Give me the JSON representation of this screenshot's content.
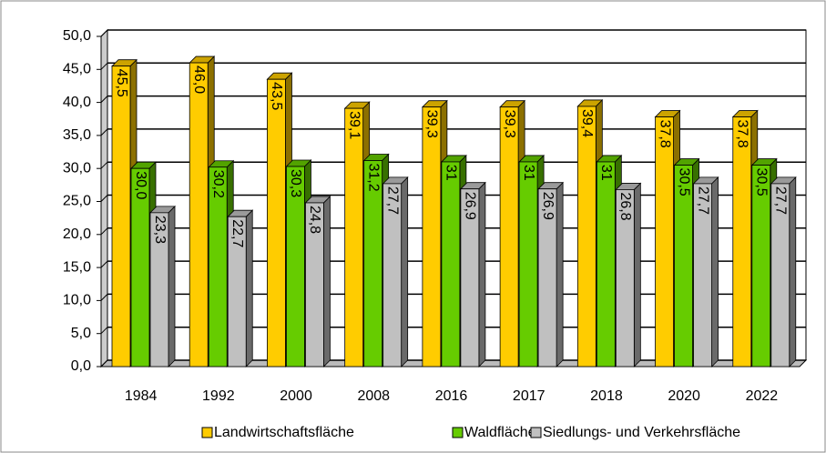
{
  "chart_data": {
    "type": "bar",
    "categories": [
      "1984",
      "1992",
      "2000",
      "2008",
      "2016",
      "2017",
      "2018",
      "2020",
      "2022"
    ],
    "series": [
      {
        "name": "Landwirtschaftsfläche",
        "color": "#FFCC00",
        "values": [
          45.5,
          46.0,
          43.5,
          39.1,
          39.3,
          39.3,
          39.4,
          37.8,
          37.8
        ],
        "value_labels": [
          "45,5",
          "46,0",
          "43,5",
          "39,1",
          "39,3",
          "39,3",
          "39,4",
          "37,8",
          "37,8"
        ]
      },
      {
        "name": "Waldfläche",
        "color": "#66CC00",
        "values": [
          30.0,
          30.2,
          30.3,
          31.2,
          31,
          31,
          31,
          30.5,
          30.5
        ],
        "value_labels": [
          "30,0",
          "30,2",
          "30,3",
          "31,2",
          "31",
          "31",
          "31",
          "30,5",
          "30,5"
        ]
      },
      {
        "name": "Siedlungs- und Verkehrsfläche",
        "color": "#C0C0C0",
        "values": [
          23.3,
          22.7,
          24.8,
          27.7,
          26.9,
          26.9,
          26.8,
          27.7,
          27.7
        ],
        "value_labels": [
          "23,3",
          "22,7",
          "24,8",
          "27,7",
          "26,9",
          "26,9",
          "26,8",
          "27,7",
          "27,7"
        ]
      }
    ],
    "ylim": [
      0,
      50
    ],
    "yticks": [
      {
        "value": 0,
        "label": "0,0"
      },
      {
        "value": 5,
        "label": "5,0"
      },
      {
        "value": 10,
        "label": "10,0"
      },
      {
        "value": 15,
        "label": "15,0"
      },
      {
        "value": 20,
        "label": "20,0"
      },
      {
        "value": 25,
        "label": "25,0"
      },
      {
        "value": 30,
        "label": "30,0"
      },
      {
        "value": 35,
        "label": "35,0"
      },
      {
        "value": 40,
        "label": "40,0"
      },
      {
        "value": 45,
        "label": "45,0"
      },
      {
        "value": 50,
        "label": "50,0"
      }
    ],
    "grid": true,
    "legend": "bottom"
  }
}
